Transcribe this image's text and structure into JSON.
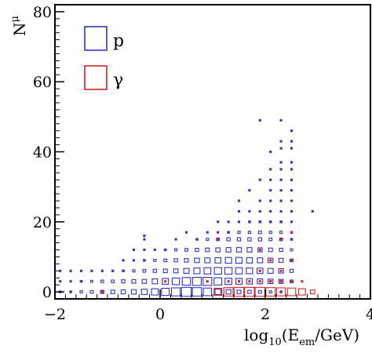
{
  "chart_data": {
    "type": "heatmap",
    "subtype": "box",
    "xlabel": {
      "base": "log",
      "sub1": "10",
      "mid": "(E",
      "sub2": "em",
      "end": "/GeV)"
    },
    "ylabel": {
      "base": "N",
      "sub": "μ"
    },
    "xlim": [
      -2,
      4
    ],
    "ylim": [
      -2,
      82
    ],
    "xticks": [
      -2,
      0,
      2,
      4
    ],
    "xtick_labels": [
      "−2",
      "0",
      "2",
      "4"
    ],
    "yticks": [
      0,
      20,
      40,
      60,
      80
    ],
    "ytick_labels": [
      "0",
      "20",
      "40",
      "60",
      "80"
    ],
    "grid": false,
    "legend_position": "top-left",
    "legend": [
      {
        "label": "p",
        "color": "#3333cc"
      },
      {
        "label": "γ",
        "color": "#dd2222"
      }
    ],
    "series": [
      {
        "name": "p",
        "color": "#3333cc",
        "points": [
          [
            -1.9,
            0,
            0.2
          ],
          [
            -1.7,
            0,
            0.2
          ],
          [
            -1.5,
            0,
            0.25
          ],
          [
            -1.3,
            0,
            0.3
          ],
          [
            -1.1,
            0,
            0.35
          ],
          [
            -0.9,
            0,
            0.4
          ],
          [
            -0.7,
            0,
            0.45
          ],
          [
            -0.5,
            0,
            0.5
          ],
          [
            -0.3,
            0,
            0.6
          ],
          [
            -0.1,
            0,
            0.7
          ],
          [
            0.1,
            0,
            0.8
          ],
          [
            0.3,
            0,
            0.9
          ],
          [
            0.5,
            0,
            1.0
          ],
          [
            0.7,
            0,
            0.95
          ],
          [
            0.9,
            0,
            0.85
          ],
          [
            1.1,
            0,
            0.6
          ],
          [
            1.3,
            0,
            0.5
          ],
          [
            1.5,
            0,
            0.4
          ],
          [
            1.7,
            0,
            0.35
          ],
          [
            1.9,
            0,
            0.3
          ],
          [
            2.1,
            0,
            0.25
          ],
          [
            2.3,
            0,
            0.2
          ],
          [
            -1.9,
            3,
            0.12
          ],
          [
            -1.7,
            3,
            0.15
          ],
          [
            -1.5,
            3,
            0.2
          ],
          [
            -1.3,
            3,
            0.22
          ],
          [
            -1.1,
            3,
            0.28
          ],
          [
            -0.9,
            3,
            0.3
          ],
          [
            -0.7,
            3,
            0.35
          ],
          [
            -0.5,
            3,
            0.4
          ],
          [
            -0.3,
            3,
            0.45
          ],
          [
            -0.1,
            3,
            0.55
          ],
          [
            0.1,
            3,
            0.65
          ],
          [
            0.3,
            3,
            0.75
          ],
          [
            0.5,
            3,
            0.85
          ],
          [
            0.7,
            3,
            0.9
          ],
          [
            0.9,
            3,
            0.9
          ],
          [
            1.1,
            3,
            0.8
          ],
          [
            1.3,
            3,
            0.7
          ],
          [
            1.5,
            3,
            0.65
          ],
          [
            1.7,
            3,
            0.6
          ],
          [
            1.9,
            3,
            0.55
          ],
          [
            2.1,
            3,
            0.5
          ],
          [
            2.3,
            3,
            0.45
          ],
          [
            2.5,
            3,
            0.3
          ],
          [
            -1.9,
            6,
            0.1
          ],
          [
            -1.7,
            6,
            0.12
          ],
          [
            -1.5,
            6,
            0.12
          ],
          [
            -1.3,
            6,
            0.15
          ],
          [
            -1.1,
            6,
            0.15
          ],
          [
            -0.9,
            6,
            0.18
          ],
          [
            -0.7,
            6,
            0.2
          ],
          [
            -0.5,
            6,
            0.25
          ],
          [
            -0.3,
            6,
            0.3
          ],
          [
            -0.1,
            6,
            0.35
          ],
          [
            0.1,
            6,
            0.4
          ],
          [
            0.3,
            6,
            0.45
          ],
          [
            0.5,
            6,
            0.55
          ],
          [
            0.7,
            6,
            0.65
          ],
          [
            0.9,
            6,
            0.7
          ],
          [
            1.1,
            6,
            0.75
          ],
          [
            1.3,
            6,
            0.75
          ],
          [
            1.5,
            6,
            0.7
          ],
          [
            1.7,
            6,
            0.65
          ],
          [
            1.9,
            6,
            0.6
          ],
          [
            2.1,
            6,
            0.55
          ],
          [
            2.3,
            6,
            0.5
          ],
          [
            2.5,
            6,
            0.35
          ],
          [
            -0.7,
            9,
            0.12
          ],
          [
            -0.5,
            9,
            0.15
          ],
          [
            -0.3,
            9,
            0.2
          ],
          [
            -0.1,
            9,
            0.25
          ],
          [
            0.1,
            9,
            0.3
          ],
          [
            0.3,
            9,
            0.35
          ],
          [
            0.5,
            9,
            0.4
          ],
          [
            0.7,
            9,
            0.5
          ],
          [
            0.9,
            9,
            0.55
          ],
          [
            1.1,
            9,
            0.6
          ],
          [
            1.3,
            9,
            0.65
          ],
          [
            1.5,
            9,
            0.65
          ],
          [
            1.7,
            9,
            0.6
          ],
          [
            1.9,
            9,
            0.55
          ],
          [
            2.1,
            9,
            0.5
          ],
          [
            2.3,
            9,
            0.45
          ],
          [
            2.5,
            9,
            0.3
          ],
          [
            -0.5,
            12,
            0.12
          ],
          [
            -0.3,
            12,
            0.15
          ],
          [
            -0.1,
            12,
            0.15
          ],
          [
            0.1,
            12,
            0.2
          ],
          [
            0.3,
            12,
            0.25
          ],
          [
            0.5,
            12,
            0.3
          ],
          [
            0.7,
            12,
            0.35
          ],
          [
            0.9,
            12,
            0.4
          ],
          [
            1.1,
            12,
            0.45
          ],
          [
            1.3,
            12,
            0.5
          ],
          [
            1.5,
            12,
            0.5
          ],
          [
            1.7,
            12,
            0.5
          ],
          [
            1.9,
            12,
            0.45
          ],
          [
            2.1,
            12,
            0.4
          ],
          [
            2.3,
            12,
            0.35
          ],
          [
            2.5,
            12,
            0.25
          ],
          [
            -0.3,
            15,
            0.12
          ],
          [
            0.3,
            15,
            0.15
          ],
          [
            0.7,
            15,
            0.2
          ],
          [
            0.9,
            15,
            0.25
          ],
          [
            1.1,
            15,
            0.3
          ],
          [
            1.3,
            15,
            0.35
          ],
          [
            1.5,
            15,
            0.35
          ],
          [
            1.7,
            15,
            0.35
          ],
          [
            1.9,
            15,
            0.35
          ],
          [
            2.1,
            15,
            0.3
          ],
          [
            2.3,
            15,
            0.3
          ],
          [
            2.5,
            15,
            0.2
          ],
          [
            0.9,
            17,
            0.12
          ],
          [
            1.1,
            17,
            0.15
          ],
          [
            1.3,
            17,
            0.2
          ],
          [
            1.5,
            17,
            0.25
          ],
          [
            1.7,
            17,
            0.25
          ],
          [
            1.9,
            17,
            0.3
          ],
          [
            2.1,
            17,
            0.25
          ],
          [
            2.3,
            17,
            0.25
          ],
          [
            2.5,
            17,
            0.2
          ],
          [
            1.1,
            20,
            0.1
          ],
          [
            1.3,
            20,
            0.12
          ],
          [
            1.5,
            20,
            0.15
          ],
          [
            1.7,
            20,
            0.2
          ],
          [
            1.9,
            20,
            0.2
          ],
          [
            2.1,
            20,
            0.2
          ],
          [
            2.3,
            20,
            0.2
          ],
          [
            2.5,
            20,
            0.15
          ],
          [
            2.9,
            23,
            0.1
          ],
          [
            1.5,
            23,
            0.12
          ],
          [
            1.7,
            23,
            0.12
          ],
          [
            1.9,
            23,
            0.15
          ],
          [
            2.1,
            23,
            0.15
          ],
          [
            2.3,
            23,
            0.15
          ],
          [
            2.5,
            23,
            0.12
          ],
          [
            1.5,
            26,
            0.1
          ],
          [
            1.9,
            26,
            0.1
          ],
          [
            2.1,
            26,
            0.12
          ],
          [
            2.3,
            26,
            0.12
          ],
          [
            2.5,
            26,
            0.1
          ],
          [
            1.7,
            29,
            0.1
          ],
          [
            2.1,
            29,
            0.1
          ],
          [
            2.3,
            29,
            0.1
          ],
          [
            2.5,
            29,
            0.1
          ],
          [
            1.9,
            32,
            0.1
          ],
          [
            2.1,
            32,
            0.1
          ],
          [
            2.3,
            32,
            0.1
          ],
          [
            2.5,
            32,
            0.1
          ],
          [
            2.1,
            35,
            0.1
          ],
          [
            2.3,
            35,
            0.1
          ],
          [
            2.5,
            35,
            0.1
          ],
          [
            2.3,
            37,
            0.1
          ],
          [
            2.5,
            37,
            0.1
          ],
          [
            2.1,
            40,
            0.1
          ],
          [
            2.3,
            41,
            0.1
          ],
          [
            2.5,
            41,
            0.1
          ],
          [
            2.3,
            43,
            0.1
          ],
          [
            2.5,
            43,
            0.1
          ],
          [
            2.5,
            46,
            0.1
          ],
          [
            1.9,
            49,
            0.1
          ],
          [
            2.3,
            49,
            0.08
          ],
          [
            -0.3,
            16,
            0.12
          ],
          [
            0.5,
            17,
            0.12
          ]
        ]
      },
      {
        "name": "γ",
        "color": "#dd2222",
        "points": [
          [
            1.1,
            0,
            0.8
          ],
          [
            1.3,
            0,
            0.95
          ],
          [
            1.5,
            0,
            1.0
          ],
          [
            1.7,
            0,
            1.0
          ],
          [
            1.9,
            0,
            1.0
          ],
          [
            2.1,
            0,
            0.95
          ],
          [
            2.3,
            0,
            0.9
          ],
          [
            2.5,
            0,
            0.85
          ],
          [
            2.7,
            0,
            0.7
          ],
          [
            2.9,
            0,
            0.45
          ],
          [
            1.3,
            3,
            0.12
          ],
          [
            1.5,
            3,
            0.15
          ],
          [
            1.7,
            3,
            0.15
          ],
          [
            1.9,
            3,
            0.15
          ],
          [
            2.1,
            3,
            0.2
          ],
          [
            2.3,
            3,
            0.2
          ],
          [
            2.5,
            3,
            0.15
          ],
          [
            2.7,
            3,
            0.12
          ],
          [
            -1.1,
            0,
            0.12
          ],
          [
            0.1,
            3,
            0.12
          ],
          [
            0.9,
            3,
            0.12
          ],
          [
            1.9,
            6,
            0.12
          ],
          [
            2.3,
            6,
            0.12
          ],
          [
            2.1,
            9,
            0.12
          ],
          [
            2.5,
            9,
            0.12
          ],
          [
            1.9,
            12,
            0.1
          ],
          [
            2.3,
            15,
            0.1
          ],
          [
            1.1,
            15,
            0.1
          ],
          [
            2.5,
            17,
            0.1
          ]
        ]
      }
    ]
  }
}
